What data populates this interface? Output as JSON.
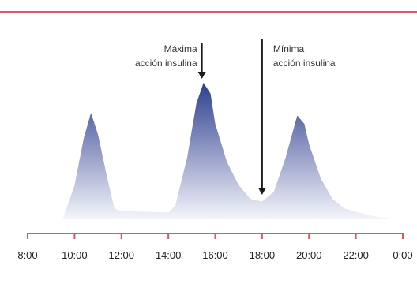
{
  "chart_data": {
    "type": "area",
    "title": "",
    "xlabel": "",
    "ylabel": "",
    "x_ticks": [
      "8:00",
      "10:00",
      "12:00",
      "14:00",
      "16:00",
      "18:00",
      "20:00",
      "22:00",
      "0:00"
    ],
    "x_range_hours": [
      8,
      24
    ],
    "y_range": [
      0,
      1
    ],
    "grid": false,
    "legend": "none",
    "series": [
      {
        "points": [
          [
            9.5,
            0.0
          ],
          [
            10.0,
            0.25
          ],
          [
            10.4,
            0.6
          ],
          [
            10.7,
            0.78
          ],
          [
            11.0,
            0.62
          ],
          [
            11.4,
            0.3
          ],
          [
            11.7,
            0.08
          ],
          [
            12.0,
            0.06
          ],
          [
            14.0,
            0.05
          ],
          [
            14.3,
            0.1
          ],
          [
            14.8,
            0.45
          ],
          [
            15.2,
            0.85
          ],
          [
            15.5,
            1.0
          ],
          [
            15.8,
            0.92
          ],
          [
            16.0,
            0.7
          ],
          [
            16.5,
            0.42
          ],
          [
            17.0,
            0.25
          ],
          [
            17.5,
            0.15
          ],
          [
            18.0,
            0.13
          ],
          [
            18.5,
            0.2
          ],
          [
            19.0,
            0.45
          ],
          [
            19.5,
            0.76
          ],
          [
            19.8,
            0.7
          ],
          [
            20.0,
            0.55
          ],
          [
            20.5,
            0.3
          ],
          [
            21.0,
            0.15
          ],
          [
            21.5,
            0.08
          ],
          [
            22.5,
            0.03
          ],
          [
            23.5,
            0.0
          ]
        ]
      }
    ],
    "annotations": [
      {
        "label_lines": [
          "Máxima",
          "acción insulina"
        ],
        "x": 15.5
      },
      {
        "label_lines": [
          "Mínima",
          "acción insulina"
        ],
        "x": 18.0
      }
    ],
    "colors": {
      "rule": "#e05560",
      "fill_top": "#2f3f8f",
      "fill_bottom": "#f4f5fb",
      "arrow": "#1a1a1a"
    }
  }
}
